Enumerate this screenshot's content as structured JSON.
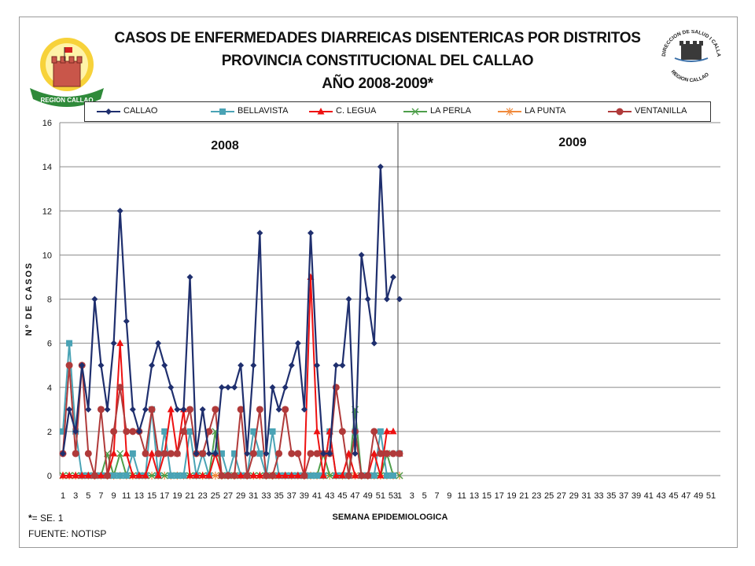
{
  "header": {
    "title_line1": "CASOS DE ENFERMEDADES DIARREICAS DISENTERICAS POR DISTRITOS",
    "title_line2": "PROVINCIA CONSTITUCIONAL DEL CALLAO",
    "title_line3": "AÑO 2008-2009*",
    "left_logo_text": "REGION CALLAO",
    "right_logo_text_top": "DIRECCION DE SALUD I CALLAO",
    "right_logo_text_bottom": "REGION CALLAO"
  },
  "footer": {
    "note_symbol": "*",
    "note_text": "= SE. 1",
    "source": "FUENTE: NOTISP"
  },
  "colors": {
    "CALLAO": "#1f2f6e",
    "BELLAVISTA": "#4aa3b5",
    "C. LEGUA": "#ee1111",
    "LA PERLA": "#4e9e4a",
    "LA PUNTA": "#f08a3c",
    "VENTANILLA": "#b03a3a"
  },
  "chart_data": {
    "type": "line",
    "title": "CASOS DE ENFERMEDADES DIARREICAS DISENTERICAS POR DISTRITOS",
    "xlabel": "SEMANA EPIDEMIOLOGICA",
    "ylabel": "Nº DE CASOS",
    "ylim": [
      0,
      16
    ],
    "yticks": [
      0,
      2,
      4,
      6,
      8,
      10,
      12,
      14,
      16
    ],
    "grid": true,
    "legend_position": "top",
    "period_labels": [
      "2008",
      "2009"
    ],
    "weeks_2008": 53,
    "weeks_2009": 52,
    "x_tick_labels_2008": [
      "1",
      "3",
      "5",
      "7",
      "9",
      "11",
      "13",
      "15",
      "17",
      "19",
      "21",
      "23",
      "25",
      "27",
      "29",
      "31",
      "33",
      "35",
      "37",
      "39",
      "41",
      "43",
      "45",
      "47",
      "49",
      "51",
      "53"
    ],
    "x_tick_labels_2009": [
      "1",
      "3",
      "5",
      "7",
      "9",
      "11",
      "13",
      "15",
      "17",
      "19",
      "21",
      "23",
      "25",
      "27",
      "29",
      "31",
      "33",
      "35",
      "37",
      "39",
      "41",
      "43",
      "45",
      "47",
      "49",
      "51"
    ],
    "series": [
      {
        "name": "CALLAO",
        "marker": "diamond",
        "values_2008": [
          1,
          3,
          2,
          5,
          3,
          8,
          5,
          3,
          6,
          12,
          7,
          3,
          2,
          3,
          5,
          6,
          5,
          4,
          3,
          3,
          9,
          1,
          3,
          1,
          1,
          4,
          4,
          4,
          5,
          1,
          5,
          11,
          1,
          4,
          3,
          4,
          5,
          6,
          3,
          11,
          5,
          1,
          1,
          5,
          5,
          8,
          1,
          10,
          8,
          6,
          14,
          8,
          9
        ],
        "values_2009": [
          8
        ]
      },
      {
        "name": "BELLAVISTA",
        "marker": "square",
        "values_2008": [
          2,
          6,
          2,
          0,
          0,
          0,
          0,
          0,
          0,
          0,
          0,
          1,
          0,
          0,
          3,
          0,
          2,
          0,
          0,
          0,
          2,
          0,
          1,
          0,
          1,
          1,
          0,
          1,
          0,
          0,
          2,
          1,
          0,
          2,
          0,
          0,
          0,
          0,
          0,
          0,
          0,
          0,
          2,
          0,
          0,
          0,
          2,
          0,
          0,
          0,
          2,
          0,
          0
        ],
        "values_2009": [
          1
        ]
      },
      {
        "name": "C. LEGUA",
        "marker": "triangle",
        "values_2008": [
          0,
          0,
          0,
          0,
          0,
          0,
          0,
          0,
          1,
          6,
          1,
          0,
          0,
          0,
          1,
          0,
          1,
          3,
          1,
          3,
          0,
          0,
          0,
          0,
          1,
          0,
          0,
          0,
          0,
          0,
          0,
          0,
          0,
          0,
          0,
          0,
          0,
          0,
          0,
          9,
          2,
          0,
          2,
          0,
          0,
          1,
          0,
          0,
          0,
          1,
          0,
          2,
          2
        ],
        "values_2009": [
          1
        ]
      },
      {
        "name": "LA PERLA",
        "marker": "x",
        "values_2008": [
          0,
          0,
          0,
          0,
          0,
          0,
          0,
          1,
          0,
          1,
          0,
          0,
          0,
          0,
          0,
          0,
          0,
          0,
          0,
          0,
          0,
          0,
          0,
          0,
          2,
          0,
          0,
          0,
          0,
          0,
          0,
          0,
          0,
          0,
          0,
          0,
          0,
          0,
          0,
          0,
          0,
          1,
          0,
          0,
          0,
          0,
          3,
          0,
          0,
          0,
          0,
          1,
          0
        ],
        "values_2009": [
          0
        ]
      },
      {
        "name": "LA PUNTA",
        "marker": "star",
        "values_2008": [
          0,
          0,
          0,
          0,
          0,
          0,
          0,
          0,
          0,
          0,
          0,
          0,
          0,
          0,
          0,
          0,
          0,
          0,
          0,
          0,
          0,
          0,
          0,
          0,
          0,
          0,
          0,
          0,
          0,
          0,
          0,
          0,
          0,
          0,
          0,
          0,
          0,
          0,
          0,
          0,
          0,
          0,
          0,
          0,
          0,
          0,
          0,
          0,
          0,
          0,
          0,
          0,
          0
        ],
        "values_2009": [
          0
        ]
      },
      {
        "name": "VENTANILLA",
        "marker": "circle",
        "values_2008": [
          1,
          5,
          1,
          5,
          1,
          0,
          3,
          0,
          2,
          4,
          2,
          2,
          2,
          1,
          3,
          1,
          1,
          1,
          1,
          2,
          3,
          1,
          1,
          2,
          3,
          0,
          0,
          0,
          3,
          0,
          1,
          3,
          0,
          0,
          1,
          3,
          1,
          1,
          0,
          1,
          1,
          1,
          1,
          4,
          2,
          0,
          2,
          0,
          0,
          2,
          1,
          1,
          1
        ],
        "values_2009": [
          1
        ]
      }
    ]
  }
}
